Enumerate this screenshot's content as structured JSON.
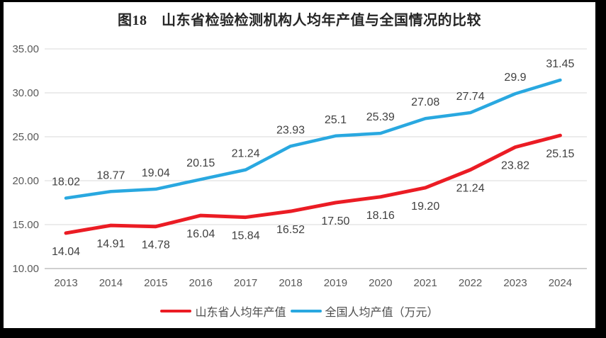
{
  "title": "图18　山东省检验检测机构人均年产值与全国情况的比较",
  "chart_data": {
    "type": "line",
    "title": "图18　山东省检验检测机构人均年产值与全国情况的比较",
    "categories": [
      "2013",
      "2014",
      "2015",
      "2016",
      "2017",
      "2018",
      "2019",
      "2020",
      "2021",
      "2022",
      "2023",
      "2024"
    ],
    "series": [
      {
        "name": "山东省人均年产值",
        "color": "#eb1c24",
        "stroke_width": 5,
        "label_position": "below",
        "values": [
          14.04,
          14.91,
          14.78,
          16.04,
          15.84,
          16.52,
          17.5,
          18.16,
          19.2,
          21.24,
          23.82,
          25.15
        ],
        "labels": [
          "14.04",
          "14.91",
          "14.78",
          "16.04",
          "15.84",
          "16.52",
          "17.50",
          "18.16",
          "19.20",
          "21.24",
          "23.82",
          "25.15"
        ]
      },
      {
        "name": "全国人均产值（万元）",
        "color": "#29a8e0",
        "stroke_width": 4.5,
        "label_position": "above",
        "values": [
          18.02,
          18.77,
          19.04,
          20.15,
          21.24,
          23.93,
          25.1,
          25.39,
          27.08,
          27.74,
          29.9,
          31.45
        ],
        "labels": [
          "18.02",
          "18.77",
          "19.04",
          "20.15",
          "21.24",
          "23.93",
          "25.1",
          "25.39",
          "27.08",
          "27.74",
          "29.9",
          "31.45"
        ]
      }
    ],
    "ylim": [
      10,
      35
    ],
    "yticks": [
      {
        "value": 35,
        "label": "35.00"
      },
      {
        "value": 30,
        "label": "30.00"
      },
      {
        "value": 25,
        "label": "25.00"
      },
      {
        "value": 20,
        "label": "20.00"
      },
      {
        "value": 15,
        "label": "15.00"
      },
      {
        "value": 10,
        "label": "10.00"
      }
    ],
    "grid": true,
    "legend_position": "bottom",
    "colors": {
      "gridline": "#d9d9d9",
      "axis_line": "#bfbfbf",
      "tick_label": "#595959",
      "data_label": "#404040",
      "legend_label": "#4d4d4d",
      "title": "#262626",
      "background": "#ffffff",
      "frame": "#000000"
    }
  }
}
